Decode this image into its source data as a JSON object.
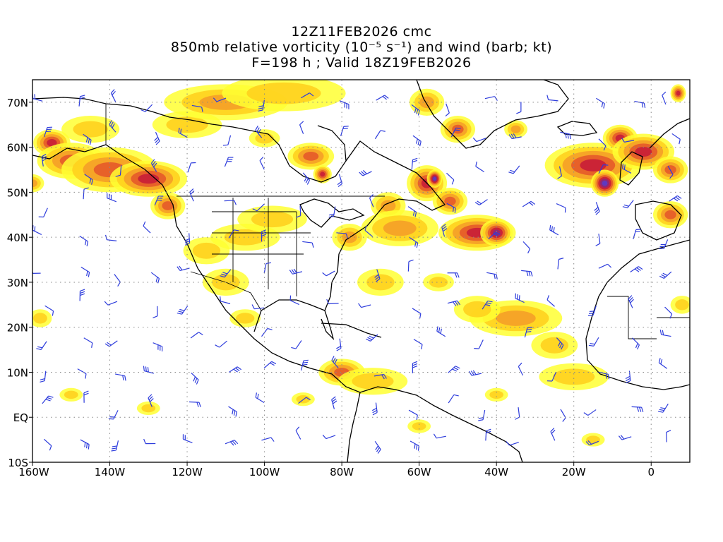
{
  "title": {
    "line1": "12Z11FEB2026 cmc",
    "line2": "850mb relative vorticity (10⁻⁵ s⁻¹) and wind (barb; kt)",
    "line3": "F=198 h ; Valid 18Z19FEB2026"
  },
  "chart_data": {
    "type": "map",
    "extent": {
      "lon": [
        -160,
        10
      ],
      "lat": [
        -10,
        75
      ]
    },
    "x_tick_labels": [
      "160W",
      "140W",
      "120W",
      "100W",
      "80W",
      "60W",
      "40W",
      "20W",
      "0"
    ],
    "y_tick_labels": [
      "10S",
      "EQ",
      "10N",
      "20N",
      "30N",
      "40N",
      "50N",
      "60N",
      "70N"
    ],
    "grid": "dotted",
    "field": "850mb relative vorticity",
    "color_scale": [
      "#ffff33",
      "#ffd21e",
      "#f5a028",
      "#e65a2a",
      "#c81e37",
      "#8c2878",
      "#5a3cc8"
    ],
    "barb_color": "#2d3cdc",
    "coast_color": "#000000"
  }
}
